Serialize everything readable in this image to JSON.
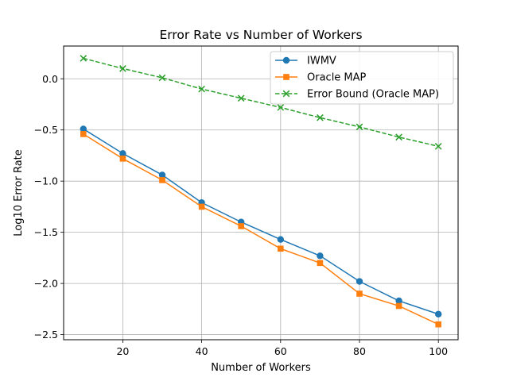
{
  "chart_data": {
    "type": "line",
    "title": "Error Rate vs Number of Workers",
    "xlabel": "Number of Workers",
    "ylabel": "Log10 Error Rate",
    "xlim": [
      5,
      105
    ],
    "ylim": [
      -2.55,
      0.32
    ],
    "x_ticks": [
      20,
      40,
      60,
      80,
      100
    ],
    "x_tick_labels": [
      "20",
      "40",
      "60",
      "80",
      "100"
    ],
    "y_ticks": [
      0.0,
      -0.5,
      -1.0,
      -1.5,
      -2.0,
      -2.5
    ],
    "y_tick_labels": [
      "0.0",
      "−0.5",
      "−1.0",
      "−1.5",
      "−2.0",
      "−2.5"
    ],
    "grid": true,
    "legend_position": "top-right",
    "x": [
      10,
      20,
      30,
      40,
      50,
      60,
      70,
      80,
      90,
      100
    ],
    "series": [
      {
        "name": "IWMV",
        "color": "#1f77b4",
        "marker": "circle",
        "dashed": false,
        "values": [
          -0.49,
          -0.73,
          -0.94,
          -1.21,
          -1.4,
          -1.57,
          -1.73,
          -1.98,
          -2.17,
          -2.3
        ]
      },
      {
        "name": "Oracle MAP",
        "color": "#ff7f0e",
        "marker": "square",
        "dashed": false,
        "values": [
          -0.54,
          -0.78,
          -0.99,
          -1.25,
          -1.44,
          -1.66,
          -1.8,
          -2.1,
          -2.22,
          -2.4
        ]
      },
      {
        "name": "Error Bound (Oracle MAP)",
        "color": "#2ca02c",
        "marker": "x",
        "dashed": true,
        "values": [
          0.2,
          0.1,
          0.01,
          -0.1,
          -0.19,
          -0.28,
          -0.38,
          -0.47,
          -0.57,
          -0.66
        ]
      }
    ]
  }
}
